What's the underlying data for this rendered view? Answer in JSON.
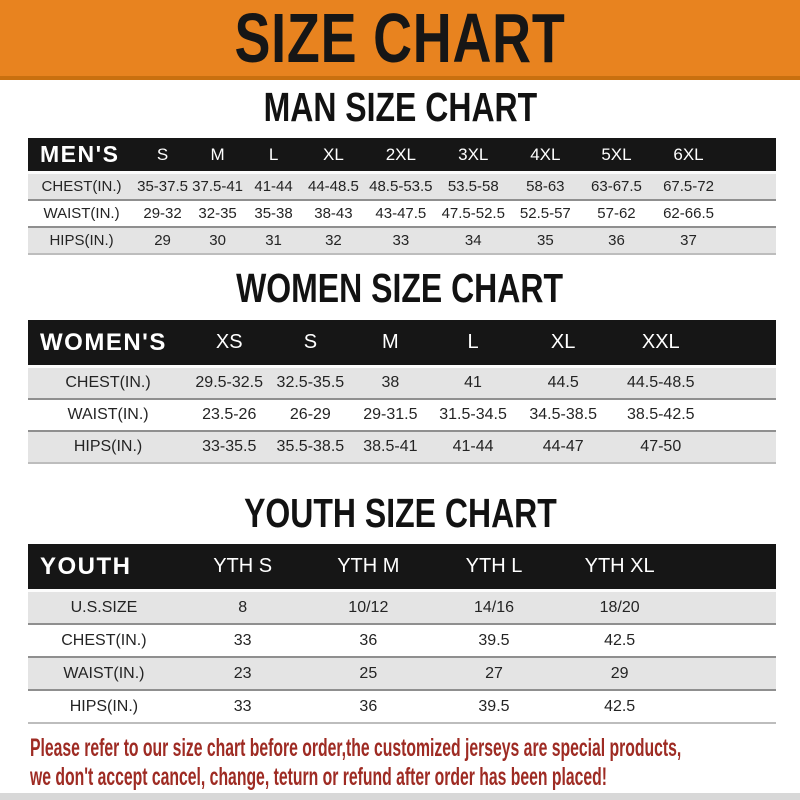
{
  "banner": {
    "title": "SIZE CHART"
  },
  "chart_data": [
    {
      "type": "table",
      "title": "MAN SIZE CHART",
      "corner_label": "MEN'S",
      "columns": [
        "S",
        "M",
        "L",
        "XL",
        "2XL",
        "3XL",
        "4XL",
        "5XL",
        "6XL"
      ],
      "rows": [
        {
          "label": "CHEST(IN.)",
          "values": [
            "35-37.5",
            "37.5-41",
            "41-44",
            "44-48.5",
            "48.5-53.5",
            "53.5-58",
            "58-63",
            "63-67.5",
            "67.5-72"
          ]
        },
        {
          "label": "WAIST(IN.)",
          "values": [
            "29-32",
            "32-35",
            "35-38",
            "38-43",
            "43-47.5",
            "47.5-52.5",
            "52.5-57",
            "57-62",
            "62-66.5"
          ]
        },
        {
          "label": "HIPS(IN.)",
          "values": [
            "29",
            "30",
            "31",
            "32",
            "33",
            "34",
            "35",
            "36",
            "37"
          ]
        }
      ]
    },
    {
      "type": "table",
      "title": "WOMEN SIZE CHART",
      "corner_label": "WOMEN'S",
      "columns": [
        "XS",
        "S",
        "M",
        "L",
        "XL",
        "XXL"
      ],
      "rows": [
        {
          "label": "CHEST(IN.)",
          "values": [
            "29.5-32.5",
            "32.5-35.5",
            "38",
            "41",
            "44.5",
            "44.5-48.5"
          ]
        },
        {
          "label": "WAIST(IN.)",
          "values": [
            "23.5-26",
            "26-29",
            "29-31.5",
            "31.5-34.5",
            "34.5-38.5",
            "38.5-42.5"
          ]
        },
        {
          "label": "HIPS(IN.)",
          "values": [
            "33-35.5",
            "35.5-38.5",
            "38.5-41",
            "41-44",
            "44-47",
            "47-50"
          ]
        }
      ]
    },
    {
      "type": "table",
      "title": "YOUTH SIZE CHART",
      "corner_label": "YOUTH",
      "columns": [
        "YTH S",
        "YTH M",
        "YTH L",
        "YTH XL"
      ],
      "rows": [
        {
          "label": "U.S.SIZE",
          "values": [
            "8",
            "10/12",
            "14/16",
            "18/20"
          ]
        },
        {
          "label": "CHEST(IN.)",
          "values": [
            "33",
            "36",
            "39.5",
            "42.5"
          ]
        },
        {
          "label": "WAIST(IN.)",
          "values": [
            "23",
            "25",
            "27",
            "29"
          ]
        },
        {
          "label": "HIPS(IN.)",
          "values": [
            "33",
            "36",
            "39.5",
            "42.5"
          ]
        }
      ]
    }
  ],
  "footer": {
    "line1": "Please refer to our size chart before order,the customized jerseys are special products,",
    "line2": "we don't accept cancel, change, teturn or refund after order has been placed!"
  },
  "colors": {
    "banner_bg": "#E8831F",
    "banner_border": "#C9700F",
    "header_bar": "#161616",
    "row_gray": "#E4E4E4",
    "footer_red": "#9E2B23"
  }
}
